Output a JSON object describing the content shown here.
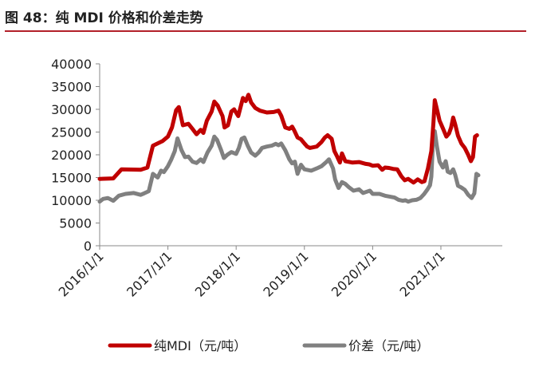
{
  "figure_title": "图 48：纯 MDI 价格和价差走势",
  "colors": {
    "accent": "#b3202a",
    "series_mdi": "#c00000",
    "series_spread": "#808080"
  },
  "chart_data": {
    "type": "line",
    "title": "图 48：纯 MDI 价格和价差走势",
    "xlabel": "",
    "ylabel": "",
    "ylim": [
      0,
      40000
    ],
    "yticks": [
      0,
      5000,
      10000,
      15000,
      20000,
      25000,
      30000,
      35000,
      40000
    ],
    "ytick_labels": [
      "0",
      "5000",
      "10000",
      "15000",
      "20000",
      "25000",
      "30000",
      "35000",
      "40000"
    ],
    "xlim": [
      2016.0,
      2021.9
    ],
    "xticks": [
      2016.0,
      2017.0,
      2018.0,
      2019.0,
      2020.0,
      2021.0
    ],
    "xtick_labels": [
      "2016/1/1",
      "2017/1/1",
      "2018/1/1",
      "2019/1/1",
      "2020/1/1",
      "2021/1/1"
    ],
    "legend_position": "bottom",
    "series": [
      {
        "name": "纯MDI（元/吨）",
        "color": "#c00000",
        "points": [
          [
            2016.0,
            14700
          ],
          [
            2016.2,
            14800
          ],
          [
            2016.32,
            16800
          ],
          [
            2016.6,
            16700
          ],
          [
            2016.7,
            17200
          ],
          [
            2016.78,
            22000
          ],
          [
            2016.92,
            23000
          ],
          [
            2017.0,
            24000
          ],
          [
            2017.06,
            26000
          ],
          [
            2017.12,
            29800
          ],
          [
            2017.16,
            30500
          ],
          [
            2017.22,
            26500
          ],
          [
            2017.3,
            26800
          ],
          [
            2017.37,
            25500
          ],
          [
            2017.42,
            24500
          ],
          [
            2017.48,
            25500
          ],
          [
            2017.52,
            24800
          ],
          [
            2017.57,
            27500
          ],
          [
            2017.64,
            29500
          ],
          [
            2017.68,
            31700
          ],
          [
            2017.73,
            30800
          ],
          [
            2017.8,
            28500
          ],
          [
            2017.83,
            26000
          ],
          [
            2017.88,
            26500
          ],
          [
            2017.93,
            29500
          ],
          [
            2017.97,
            30000
          ],
          [
            2018.03,
            28500
          ],
          [
            2018.1,
            32500
          ],
          [
            2018.14,
            31800
          ],
          [
            2018.18,
            33200
          ],
          [
            2018.22,
            31500
          ],
          [
            2018.28,
            30300
          ],
          [
            2018.35,
            29700
          ],
          [
            2018.45,
            29300
          ],
          [
            2018.55,
            29400
          ],
          [
            2018.62,
            29700
          ],
          [
            2018.66,
            28600
          ],
          [
            2018.72,
            26000
          ],
          [
            2018.78,
            25700
          ],
          [
            2018.82,
            26200
          ],
          [
            2018.85,
            25400
          ],
          [
            2018.9,
            23800
          ],
          [
            2018.95,
            23400
          ],
          [
            2019.0,
            22500
          ],
          [
            2019.04,
            21800
          ],
          [
            2019.08,
            21500
          ],
          [
            2019.18,
            21800
          ],
          [
            2019.25,
            22800
          ],
          [
            2019.3,
            23800
          ],
          [
            2019.34,
            24300
          ],
          [
            2019.4,
            23500
          ],
          [
            2019.44,
            20800
          ],
          [
            2019.48,
            19600
          ],
          [
            2019.52,
            18300
          ],
          [
            2019.55,
            20300
          ],
          [
            2019.6,
            18600
          ],
          [
            2019.7,
            18300
          ],
          [
            2019.8,
            18400
          ],
          [
            2019.9,
            18000
          ],
          [
            2019.95,
            17900
          ],
          [
            2020.0,
            17600
          ],
          [
            2020.08,
            17700
          ],
          [
            2020.14,
            16700
          ],
          [
            2020.18,
            17200
          ],
          [
            2020.24,
            17100
          ],
          [
            2020.3,
            16900
          ],
          [
            2020.36,
            16800
          ],
          [
            2020.42,
            15300
          ],
          [
            2020.47,
            14400
          ],
          [
            2020.52,
            14700
          ],
          [
            2020.6,
            13900
          ],
          [
            2020.66,
            14600
          ],
          [
            2020.72,
            14000
          ],
          [
            2020.76,
            14200
          ],
          [
            2020.81,
            17000
          ],
          [
            2020.86,
            20800
          ],
          [
            2020.89,
            27000
          ],
          [
            2020.91,
            32000
          ],
          [
            2020.95,
            29500
          ],
          [
            2020.98,
            27500
          ],
          [
            2021.03,
            25800
          ],
          [
            2021.08,
            24000
          ],
          [
            2021.12,
            24700
          ],
          [
            2021.15,
            26000
          ],
          [
            2021.18,
            28200
          ],
          [
            2021.21,
            26700
          ],
          [
            2021.25,
            24200
          ],
          [
            2021.3,
            22500
          ],
          [
            2021.35,
            21500
          ],
          [
            2021.4,
            20000
          ],
          [
            2021.44,
            18600
          ],
          [
            2021.47,
            19500
          ],
          [
            2021.5,
            24000
          ],
          [
            2021.53,
            24300
          ]
        ]
      },
      {
        "name": "价差（元/吨）",
        "color": "#808080",
        "points": [
          [
            2016.0,
            9700
          ],
          [
            2016.05,
            10300
          ],
          [
            2016.12,
            10500
          ],
          [
            2016.2,
            9900
          ],
          [
            2016.28,
            11000
          ],
          [
            2016.38,
            11400
          ],
          [
            2016.5,
            11600
          ],
          [
            2016.6,
            11200
          ],
          [
            2016.65,
            11500
          ],
          [
            2016.72,
            12000
          ],
          [
            2016.78,
            15800
          ],
          [
            2016.85,
            15000
          ],
          [
            2016.9,
            16500
          ],
          [
            2016.94,
            16200
          ],
          [
            2017.0,
            17500
          ],
          [
            2017.05,
            19000
          ],
          [
            2017.1,
            20800
          ],
          [
            2017.14,
            23600
          ],
          [
            2017.2,
            21000
          ],
          [
            2017.25,
            19500
          ],
          [
            2017.3,
            19600
          ],
          [
            2017.36,
            18500
          ],
          [
            2017.42,
            18200
          ],
          [
            2017.48,
            19000
          ],
          [
            2017.52,
            18400
          ],
          [
            2017.58,
            20500
          ],
          [
            2017.64,
            22000
          ],
          [
            2017.68,
            24000
          ],
          [
            2017.72,
            23300
          ],
          [
            2017.78,
            21000
          ],
          [
            2017.82,
            19300
          ],
          [
            2017.87,
            20000
          ],
          [
            2017.93,
            20600
          ],
          [
            2018.0,
            20200
          ],
          [
            2018.04,
            21500
          ],
          [
            2018.08,
            23500
          ],
          [
            2018.12,
            23800
          ],
          [
            2018.17,
            22000
          ],
          [
            2018.22,
            20500
          ],
          [
            2018.28,
            19800
          ],
          [
            2018.33,
            20500
          ],
          [
            2018.38,
            21500
          ],
          [
            2018.45,
            21800
          ],
          [
            2018.52,
            22000
          ],
          [
            2018.58,
            22400
          ],
          [
            2018.62,
            22100
          ],
          [
            2018.66,
            22500
          ],
          [
            2018.72,
            21000
          ],
          [
            2018.78,
            19000
          ],
          [
            2018.82,
            18100
          ],
          [
            2018.86,
            18500
          ],
          [
            2018.9,
            15800
          ],
          [
            2018.95,
            17800
          ],
          [
            2019.0,
            16800
          ],
          [
            2019.1,
            16500
          ],
          [
            2019.18,
            17000
          ],
          [
            2019.25,
            17500
          ],
          [
            2019.32,
            18400
          ],
          [
            2019.36,
            19000
          ],
          [
            2019.42,
            17000
          ],
          [
            2019.45,
            14600
          ],
          [
            2019.5,
            12700
          ],
          [
            2019.55,
            14000
          ],
          [
            2019.6,
            13600
          ],
          [
            2019.65,
            12900
          ],
          [
            2019.72,
            12100
          ],
          [
            2019.8,
            12400
          ],
          [
            2019.86,
            11600
          ],
          [
            2019.9,
            11800
          ],
          [
            2019.96,
            12100
          ],
          [
            2020.0,
            11400
          ],
          [
            2020.1,
            11400
          ],
          [
            2020.18,
            11000
          ],
          [
            2020.25,
            10800
          ],
          [
            2020.32,
            10600
          ],
          [
            2020.38,
            10100
          ],
          [
            2020.44,
            9900
          ],
          [
            2020.48,
            10000
          ],
          [
            2020.52,
            9700
          ],
          [
            2020.58,
            10000
          ],
          [
            2020.64,
            10100
          ],
          [
            2020.7,
            10500
          ],
          [
            2020.75,
            11300
          ],
          [
            2020.8,
            12300
          ],
          [
            2020.84,
            13300
          ],
          [
            2020.86,
            15200
          ],
          [
            2020.89,
            25000
          ],
          [
            2020.91,
            25200
          ],
          [
            2020.94,
            22000
          ],
          [
            2020.98,
            18500
          ],
          [
            2021.03,
            17200
          ],
          [
            2021.07,
            18600
          ],
          [
            2021.1,
            16300
          ],
          [
            2021.14,
            16000
          ],
          [
            2021.18,
            16800
          ],
          [
            2021.21,
            15600
          ],
          [
            2021.25,
            13200
          ],
          [
            2021.3,
            12800
          ],
          [
            2021.35,
            12300
          ],
          [
            2021.4,
            11200
          ],
          [
            2021.45,
            10500
          ],
          [
            2021.49,
            11500
          ],
          [
            2021.52,
            15800
          ],
          [
            2021.55,
            15500
          ]
        ]
      }
    ]
  }
}
